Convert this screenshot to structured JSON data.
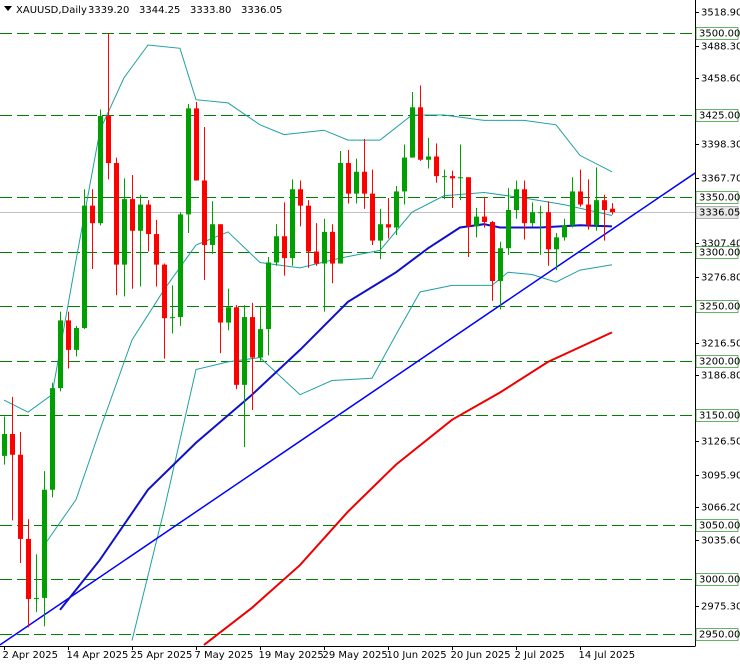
{
  "chart_data": {
    "type": "candlestick",
    "title": "XAUUSD,Daily",
    "header": [
      {
        "value": 3339.2,
        "label": "3339.20"
      },
      3344.25,
      {
        "value": 3333.8,
        "label": "3333.80"
      },
      3336.05
    ],
    "categories": [
      "2 Apr 2025",
      null,
      null,
      null,
      null,
      null,
      null,
      null,
      "14 Apr 2025",
      null,
      null,
      null,
      null,
      null,
      null,
      null,
      "25 Apr 2025",
      null,
      null,
      null,
      null,
      null,
      null,
      null,
      "7 May 2025",
      null,
      null,
      null,
      null,
      null,
      null,
      null,
      "19 May 2025",
      null,
      null,
      null,
      null,
      null,
      null,
      null,
      "29 May 2025",
      null,
      null,
      null,
      null,
      null,
      null,
      null,
      "10 Jun 2025",
      null,
      null,
      null,
      null,
      null,
      null,
      null,
      "20 Jun 2025",
      null,
      null,
      null,
      null,
      null,
      null,
      null,
      "2 Jul 2025",
      null,
      null,
      null,
      null,
      null,
      null,
      null,
      "14 Jul 2025",
      null,
      null,
      null,
      null
    ],
    "open": [
      3113,
      3133,
      3114,
      3037,
      2982,
      2983,
      3082,
      3175,
      3237,
      3210,
      3230,
      3342,
      3326,
      3424,
      3381,
      3288,
      3348,
      3319,
      3343,
      3316,
      3288,
      3239,
      3240,
      3334,
      3431,
      3365,
      3306,
      3325,
      3235,
      3249,
      3178,
      3240,
      3203,
      3229,
      3290,
      3314,
      3294,
      3357,
      3342,
      3300,
      3289,
      3318,
      3289,
      3381,
      3353,
      3373,
      3353,
      3310,
      3325,
      3322,
      3355,
      3386,
      3432,
      3384,
      3387,
      3369,
      3369,
      3367,
      3368,
      3323,
      3332,
      3327,
      3273,
      3303,
      3338,
      3357,
      3326,
      3336,
      3336,
      3302,
      3313,
      3324,
      3355,
      3343,
      3324,
      3347,
      3339.2
    ],
    "high": [
      3149,
      3167,
      3135,
      3055,
      3023,
      3099,
      3180,
      3245,
      3245,
      3232,
      3357,
      3357,
      3430,
      3500,
      3386,
      3367,
      3370,
      3352,
      3347,
      3329,
      3289,
      3269,
      3336,
      3435,
      3437,
      3414,
      3346,
      3325,
      3266,
      3251,
      3251,
      3253,
      3250,
      3295,
      3325,
      3345,
      3366,
      3365,
      3347,
      3326,
      3330,
      3325,
      3392,
      3393,
      3385,
      3403,
      3375,
      3339,
      3349,
      3360,
      3398,
      3446,
      3452,
      3404,
      3399,
      3375,
      3374,
      3398,
      3368,
      3340,
      3350,
      3328,
      3309,
      3358,
      3365,
      3365,
      3345,
      3342,
      3346,
      3317,
      3330,
      3368,
      3375,
      3366,
      3377,
      3352,
      3344.25
    ],
    "low": [
      3105,
      3054,
      3015,
      2956,
      2970,
      2957,
      3075,
      3172,
      3193,
      3204,
      3229,
      3284,
      3324,
      3366,
      3260,
      3259,
      3266,
      3268,
      3300,
      3268,
      3202,
      3225,
      3232,
      3317,
      3365,
      3274,
      3298,
      3207,
      3228,
      3174,
      3121,
      3155,
      3200,
      3205,
      3287,
      3278,
      3287,
      3323,
      3285,
      3287,
      3245,
      3271,
      3289,
      3344,
      3344,
      3339,
      3306,
      3293,
      3312,
      3315,
      3343,
      3386,
      3383,
      3376,
      3363,
      3348,
      3340,
      3347,
      3295,
      3313,
      3322,
      3255,
      3247,
      3297,
      3330,
      3311,
      3323,
      3297,
      3287,
      3283,
      3310,
      3322,
      3341,
      3320,
      3319,
      3310,
      3333.8
    ],
    "close": [
      3133,
      3114,
      3037,
      2982,
      2983,
      3082,
      3175,
      3237,
      3210,
      3230,
      3342,
      3326,
      3424,
      3381,
      3288,
      3348,
      3319,
      3343,
      3316,
      3288,
      3239,
      3240,
      3334,
      3431,
      3365,
      3306,
      3325,
      3235,
      3249,
      3178,
      3240,
      3203,
      3229,
      3290,
      3314,
      3294,
      3357,
      3342,
      3300,
      3289,
      3318,
      3289,
      3381,
      3353,
      3373,
      3353,
      3310,
      3325,
      3322,
      3355,
      3386,
      3432,
      3384,
      3387,
      3369,
      3369,
      3367,
      3368,
      3323,
      3332,
      3327,
      3273,
      3303,
      3338,
      3357,
      3326,
      3336,
      3336,
      3302,
      3313,
      3324,
      3355,
      3343,
      3324,
      3347,
      3338,
      3336.05
    ],
    "up_color": "#00a000",
    "down_color": "#ff0000",
    "ylim": [
      2939,
      3530.2
    ],
    "yticks": [
      {
        "value": 3518.9,
        "label": "3518.90"
      },
      {
        "value": 3488.3,
        "label": "3488.30"
      },
      {
        "value": 3458.6,
        "label": "3458.60"
      },
      {
        "value": 3398.3,
        "label": "3398.30"
      },
      {
        "value": 3367.7,
        "label": "3367.70"
      },
      {
        "value": 3307.4,
        "label": "3307.40"
      },
      {
        "value": 3276.8,
        "label": "3276.80"
      },
      {
        "value": 3216.5,
        "label": "3216.50"
      },
      {
        "value": 3186.8,
        "label": "3186.80"
      },
      {
        "value": 3126.5,
        "label": "3126.50"
      },
      {
        "value": 3095.9,
        "label": "3095.90"
      },
      {
        "value": 3066.2,
        "label": "3066.20"
      },
      {
        "value": 3035.6,
        "label": "3035.60"
      },
      {
        "value": 2975.3,
        "label": "2975.30"
      }
    ],
    "levels": [
      {
        "value": 3500,
        "label": "3500.00"
      },
      {
        "value": 3425,
        "label": "3425.00"
      },
      {
        "value": 3350,
        "label": "3350.00"
      },
      {
        "value": 3300,
        "label": "3300.00"
      },
      {
        "value": 3250,
        "label": "3250.00"
      },
      {
        "value": 3200,
        "label": "3200.00"
      },
      {
        "value": 3150,
        "label": "3150.00"
      },
      {
        "value": 3050,
        "label": "3050.00"
      },
      {
        "value": 3000,
        "label": "3000.00"
      },
      {
        "value": 2950,
        "label": "2950.00"
      }
    ],
    "level_color": "#008000",
    "current_price": 3336.05,
    "overlays": [
      {
        "color": "#20a0a0",
        "width": 1,
        "x": [
          0,
          3,
          6,
          9,
          12,
          15,
          18,
          22,
          24,
          28,
          32,
          35,
          40,
          43,
          47,
          51,
          55,
          60,
          65,
          69,
          72,
          76
        ],
        "values": [
          3164,
          3153,
          3169,
          3292,
          3411,
          3459,
          3489,
          3486,
          3439,
          3436,
          3416,
          3407,
          3411,
          3402,
          3402,
          3425,
          3425,
          3420,
          3420,
          3416,
          3388,
          3373
        ]
      },
      {
        "color": "#20a0a0",
        "width": 1,
        "x": [
          5,
          9,
          12,
          16,
          20,
          24,
          28,
          32,
          37,
          42,
          47,
          51,
          55,
          60,
          65,
          70,
          76
        ],
        "values": [
          3031,
          3073,
          3137,
          3219,
          3265,
          3306,
          3318,
          3290,
          3285,
          3294,
          3301,
          3336,
          3351,
          3354,
          3349,
          3343,
          3333
        ]
      },
      {
        "color": "#20a0a0",
        "width": 1,
        "x": [
          16,
          20,
          24,
          28,
          32,
          37,
          41,
          46,
          49,
          52,
          56,
          61,
          63,
          66,
          69,
          72,
          76
        ],
        "values": [
          2944,
          3063,
          3192,
          3199,
          3203,
          3169,
          3182,
          3184,
          3224,
          3263,
          3269,
          3269,
          3281,
          3279,
          3272,
          3283,
          3288
        ]
      },
      {
        "color": "#0000ff",
        "width": 1.5,
        "x": [
          -0.5,
          86.4
        ],
        "values": [
          2940,
          3372
        ]
      },
      {
        "color": "#1010cc",
        "width": 2,
        "x": [
          7,
          12,
          18,
          24,
          31,
          37,
          43,
          49,
          53,
          57,
          60,
          62,
          67,
          72,
          76
        ],
        "values": [
          2972,
          3018,
          3082,
          3125,
          3169,
          3210,
          3254,
          3281,
          3303,
          3322,
          3325,
          3322,
          3322,
          3324,
          3323
        ]
      },
      {
        "color": "#ee0000",
        "width": 2,
        "x": [
          25,
          31,
          37,
          43,
          49,
          56,
          62,
          68,
          76
        ],
        "values": [
          2940,
          2974,
          3013,
          3062,
          3105,
          3146,
          3171,
          3199,
          3226
        ]
      }
    ]
  }
}
